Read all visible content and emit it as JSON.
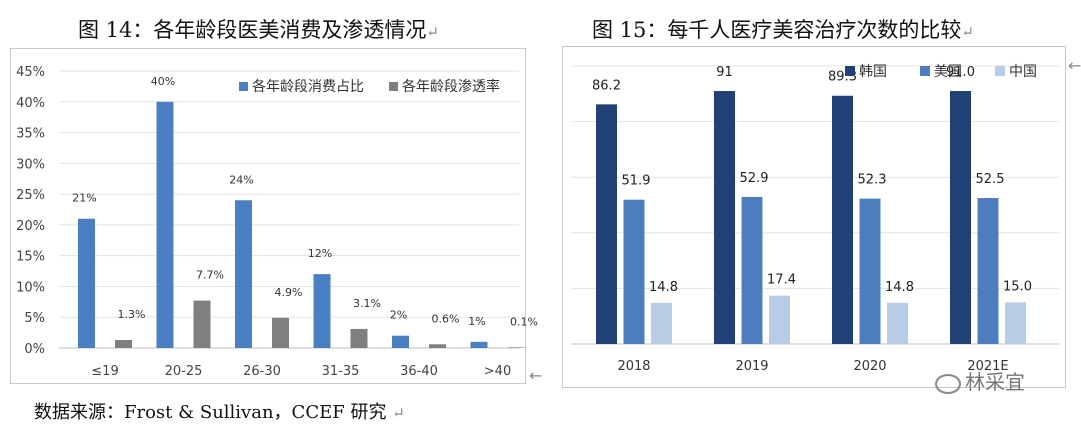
{
  "return_mark": "↵",
  "side_mark": "←",
  "source_text": "数据来源：Frost & Sullivan，CCEF 研究",
  "watermark": "林采宜",
  "chart_data": [
    {
      "type": "bar",
      "title": "图 14：各年龄段医美消费及渗透情况",
      "categories": [
        "≤19",
        "20-25",
        "26-30",
        "31-35",
        "36-40",
        ">40"
      ],
      "ylim": [
        0,
        45
      ],
      "yticks": [
        "0%",
        "5%",
        "10%",
        "15%",
        "20%",
        "25%",
        "30%",
        "35%",
        "40%",
        "45%"
      ],
      "grid": true,
      "legend_position": "top-right",
      "series": [
        {
          "name": "各年龄段消费占比",
          "color": "#4a7fc1",
          "values": [
            21,
            40,
            24,
            12,
            2,
            1
          ],
          "labels": [
            "21%",
            "40%",
            "24%",
            "12%",
            "2%",
            "1%"
          ]
        },
        {
          "name": "各年龄段渗透率",
          "color": "#7f7f7f",
          "values": [
            1.3,
            7.7,
            4.9,
            3.1,
            0.6,
            0.1
          ],
          "labels": [
            "1.3%",
            "7.7%",
            "4.9%",
            "3.1%",
            "0.6%",
            "0.1%"
          ]
        }
      ]
    },
    {
      "type": "bar",
      "title": "图 15：每千人医疗美容治疗次数的比较",
      "categories": [
        "2018",
        "2019",
        "2020",
        "2021E"
      ],
      "ylim": [
        0,
        100
      ],
      "grid": true,
      "legend_position": "top",
      "series": [
        {
          "name": "韩国",
          "color": "#1f4178",
          "values": [
            86.2,
            91,
            89.3,
            91.0
          ],
          "labels": [
            "86.2",
            "91",
            "89.3",
            "91.0"
          ]
        },
        {
          "name": "美国",
          "color": "#4d7dbf",
          "values": [
            51.9,
            52.9,
            52.3,
            52.5
          ],
          "labels": [
            "51.9",
            "52.9",
            "52.3",
            "52.5"
          ]
        },
        {
          "name": "中国",
          "color": "#b8cce6",
          "values": [
            14.8,
            17.4,
            14.8,
            15.0
          ],
          "labels": [
            "14.8",
            "17.4",
            "14.8",
            "15.0"
          ]
        }
      ]
    }
  ]
}
